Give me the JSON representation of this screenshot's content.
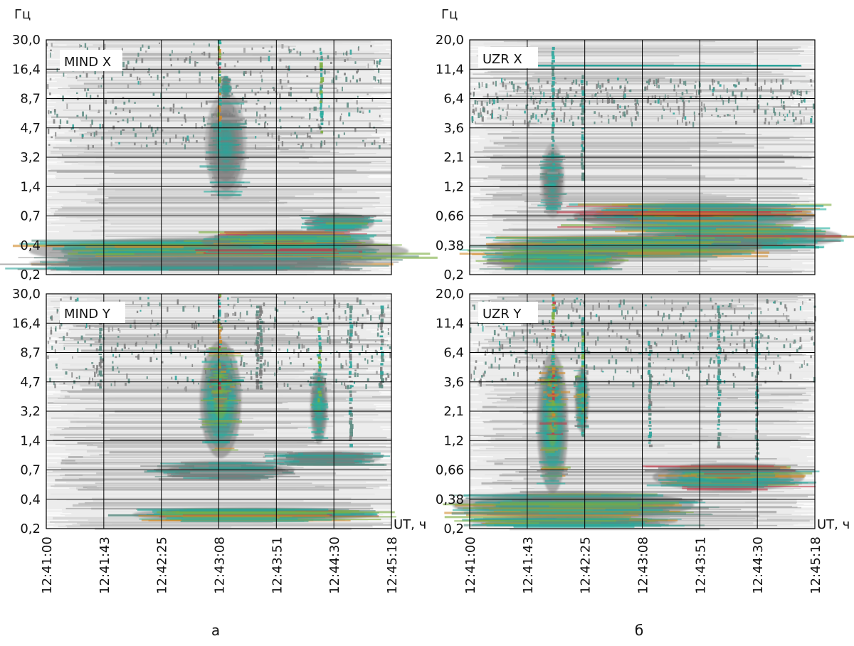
{
  "figure": {
    "caption_left": "а",
    "caption_right": "б"
  },
  "chart_data": [
    {
      "type": "heatmap",
      "id": "mind-x",
      "column": "left",
      "row": "top",
      "label": "MIND X",
      "ylabel": "Гц",
      "xlabel": "",
      "y_ticks": [
        "30,0",
        "16,4",
        "8,7",
        "4,7",
        "3,2",
        "1,4",
        "0,7",
        "0,4",
        "0,2"
      ],
      "x_ticks": [
        "12:41:00",
        "12:41:43",
        "12:42:25",
        "12:43:08",
        "12:43:51",
        "12:44:30",
        "12:45:18"
      ],
      "grid": true,
      "blobs": [
        {
          "t": 0.52,
          "f": 0.55,
          "dt": 0.06,
          "df": 0.23,
          "level": 0.55
        },
        {
          "t": 0.52,
          "f": 0.8,
          "dt": 0.015,
          "df": 0.05,
          "level": 0.55
        },
        {
          "t": 0.5,
          "f": 0.1,
          "dt": 0.55,
          "df": 0.06,
          "level": 0.85
        },
        {
          "t": 0.7,
          "f": 0.14,
          "dt": 0.25,
          "df": 0.05,
          "level": 0.95
        },
        {
          "t": 0.85,
          "f": 0.22,
          "dt": 0.1,
          "df": 0.04,
          "level": 0.75
        },
        {
          "t": 0.45,
          "f": 0.05,
          "dt": 0.5,
          "df": 0.03,
          "level": 0.5
        }
      ],
      "streaks": [
        {
          "t": 0.5,
          "from": 0.55,
          "to": 1.0,
          "level": 0.9
        },
        {
          "t": 0.795,
          "from": 0.6,
          "to": 0.95,
          "level": 0.7
        }
      ],
      "noise_band": {
        "from": 0.55,
        "to": 0.99,
        "level": 0.35
      }
    },
    {
      "type": "heatmap",
      "id": "mind-y",
      "column": "left",
      "row": "bottom",
      "label": "MIND Y",
      "ylabel": "",
      "xlabel": "UT, ч",
      "y_ticks": [
        "30,0",
        "16,4",
        "8,7",
        "4,7",
        "3,2",
        "1,4",
        "0,7",
        "0,4",
        "0,2"
      ],
      "x_ticks": [
        "12:41:00",
        "12:41:43",
        "12:42:25",
        "12:43:08",
        "12:43:51",
        "12:44:30",
        "12:45:18"
      ],
      "grid": true,
      "blobs": [
        {
          "t": 0.505,
          "f": 0.55,
          "dt": 0.06,
          "df": 0.25,
          "level": 0.85
        },
        {
          "t": 0.505,
          "f": 0.62,
          "dt": 0.03,
          "df": 0.09,
          "level": 1.0
        },
        {
          "t": 0.79,
          "f": 0.52,
          "dt": 0.025,
          "df": 0.16,
          "level": 0.75
        },
        {
          "t": 0.6,
          "f": 0.06,
          "dt": 0.35,
          "df": 0.03,
          "level": 0.9
        },
        {
          "t": 0.52,
          "f": 0.25,
          "dt": 0.2,
          "df": 0.04,
          "level": 0.5
        },
        {
          "t": 0.82,
          "f": 0.3,
          "dt": 0.15,
          "df": 0.03,
          "level": 0.5
        }
      ],
      "streaks": [
        {
          "t": 0.5,
          "from": 0.6,
          "to": 1.0,
          "level": 0.95
        },
        {
          "t": 0.79,
          "from": 0.55,
          "to": 0.9,
          "level": 0.75
        },
        {
          "t": 0.155,
          "from": 0.6,
          "to": 0.95,
          "level": 0.4
        },
        {
          "t": 0.61,
          "from": 0.6,
          "to": 0.95,
          "level": 0.4
        },
        {
          "t": 0.62,
          "from": 0.6,
          "to": 0.95,
          "level": 0.4
        },
        {
          "t": 0.88,
          "from": 0.35,
          "to": 0.95,
          "level": 0.45
        },
        {
          "t": 0.97,
          "from": 0.6,
          "to": 0.95,
          "level": 0.5
        }
      ],
      "noise_band": {
        "from": 0.6,
        "to": 0.99,
        "level": 0.35
      }
    },
    {
      "type": "heatmap",
      "id": "uzr-x",
      "column": "right",
      "row": "top",
      "label": "UZR X",
      "ylabel": "Гц",
      "xlabel": "",
      "y_ticks": [
        "20,0",
        "11,4",
        "6,4",
        "3,6",
        "2,1",
        "1,2",
        "0,66",
        "0,38",
        "0,2"
      ],
      "x_ticks": [
        "12:41:00",
        "12:41:43",
        "12:42:25",
        "12:43:08",
        "12:43:51",
        "12:44:30",
        "12:45:18"
      ],
      "grid": true,
      "blobs": [
        {
          "t": 0.24,
          "f": 0.4,
          "dt": 0.035,
          "df": 0.16,
          "level": 0.55
        },
        {
          "t": 0.65,
          "f": 0.25,
          "dt": 0.35,
          "df": 0.06,
          "level": 1.0
        },
        {
          "t": 0.78,
          "f": 0.16,
          "dt": 0.3,
          "df": 0.05,
          "level": 1.0
        },
        {
          "t": 0.45,
          "f": 0.12,
          "dt": 0.4,
          "df": 0.05,
          "level": 0.85
        },
        {
          "t": 0.25,
          "f": 0.06,
          "dt": 0.2,
          "df": 0.04,
          "level": 0.75
        }
      ],
      "streaks": [
        {
          "t": 0.24,
          "from": 0.45,
          "to": 0.97,
          "level": 0.6
        },
        {
          "t": 0.325,
          "from": 0.4,
          "to": 0.85,
          "level": 0.5
        }
      ],
      "hline": {
        "f": 0.89,
        "from": 0.03,
        "to": 0.96,
        "level": 0.55
      },
      "noise_band": {
        "from": 0.65,
        "to": 0.84,
        "level": 0.35
      }
    },
    {
      "type": "heatmap",
      "id": "uzr-y",
      "column": "right",
      "row": "bottom",
      "label": "UZR Y",
      "ylabel": "",
      "xlabel": "UT, ч",
      "y_ticks": [
        "20,0",
        "11,4",
        "6,4",
        "3,6",
        "2,1",
        "1,2",
        "0,66",
        "0,38",
        "0,2"
      ],
      "x_ticks": [
        "12:41:00",
        "12:41:43",
        "12:42:25",
        "12:43:08",
        "12:43:51",
        "12:44:30",
        "12:45:18"
      ],
      "grid": true,
      "blobs": [
        {
          "t": 0.24,
          "f": 0.45,
          "dt": 0.045,
          "df": 0.3,
          "level": 0.9
        },
        {
          "t": 0.24,
          "f": 0.62,
          "dt": 0.02,
          "df": 0.08,
          "level": 1.0
        },
        {
          "t": 0.325,
          "f": 0.55,
          "dt": 0.02,
          "df": 0.14,
          "level": 0.8
        },
        {
          "t": 0.75,
          "f": 0.22,
          "dt": 0.22,
          "df": 0.06,
          "level": 0.95
        },
        {
          "t": 0.3,
          "f": 0.1,
          "dt": 0.35,
          "df": 0.06,
          "level": 0.8
        },
        {
          "t": 0.3,
          "f": 0.03,
          "dt": 0.3,
          "df": 0.02,
          "level": 0.75
        }
      ],
      "streaks": [
        {
          "t": 0.24,
          "from": 0.4,
          "to": 1.0,
          "level": 0.95
        },
        {
          "t": 0.325,
          "from": 0.4,
          "to": 0.9,
          "level": 0.7
        },
        {
          "t": 0.52,
          "from": 0.35,
          "to": 0.8,
          "level": 0.5
        },
        {
          "t": 0.72,
          "from": 0.35,
          "to": 0.95,
          "level": 0.5
        },
        {
          "t": 0.83,
          "from": 0.3,
          "to": 0.85,
          "level": 0.5
        }
      ],
      "noise_band": {
        "from": 0.62,
        "to": 0.99,
        "level": 0.35
      }
    }
  ]
}
